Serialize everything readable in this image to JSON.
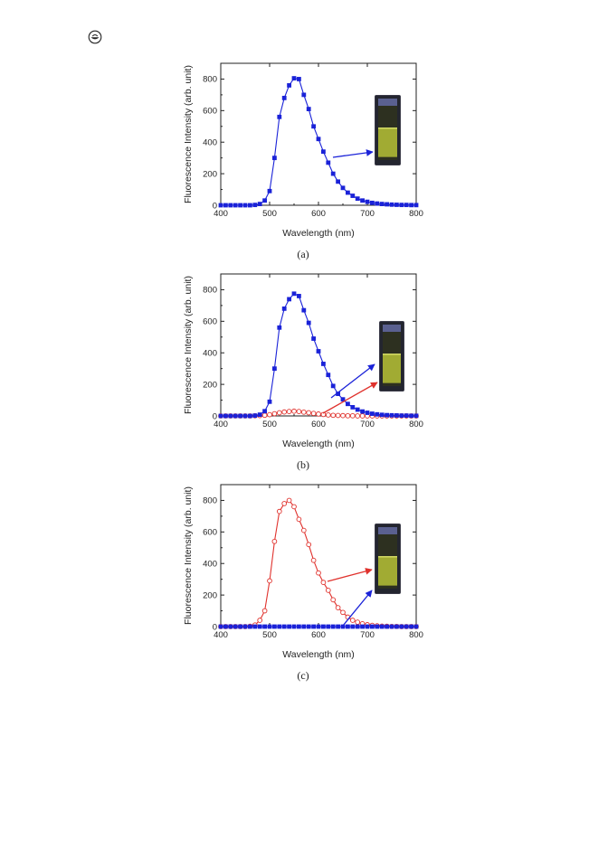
{
  "header": {
    "logo_icon": "journal-logo-icon"
  },
  "colors": {
    "series_blue": "#1a22d8",
    "series_red": "#e0322d",
    "vial_glow": "#c8d43a"
  },
  "chart_data": [
    {
      "type": "line",
      "caption": "(a)",
      "xlabel": "Wavelength (nm)",
      "ylabel": "Fluorescence Intensity (arb. unit)",
      "xlim": [
        400,
        800
      ],
      "ylim": [
        0,
        900
      ],
      "xticks": [
        400,
        500,
        600,
        700,
        800
      ],
      "yticks": [
        0,
        200,
        400,
        600,
        800
      ],
      "grid": false,
      "inset": "vial-photo",
      "series": [
        {
          "color": "#1a22d8",
          "marker": "filled-square",
          "x": [
            400,
            410,
            420,
            430,
            440,
            450,
            460,
            470,
            480,
            490,
            500,
            510,
            520,
            530,
            540,
            550,
            560,
            570,
            580,
            590,
            600,
            610,
            620,
            630,
            640,
            650,
            660,
            670,
            680,
            690,
            700,
            710,
            720,
            730,
            740,
            750,
            760,
            770,
            780,
            790,
            800
          ],
          "y": [
            0,
            0,
            0,
            0,
            0,
            0,
            0,
            2,
            8,
            30,
            90,
            300,
            560,
            680,
            760,
            805,
            800,
            700,
            610,
            500,
            420,
            340,
            270,
            200,
            150,
            110,
            80,
            60,
            42,
            30,
            22,
            15,
            11,
            8,
            6,
            4,
            3,
            2,
            2,
            1,
            1
          ]
        }
      ]
    },
    {
      "type": "line",
      "caption": "(b)",
      "xlabel": "Wavelength (nm)",
      "ylabel": "Fluorescence Intensity (arb. unit)",
      "xlim": [
        400,
        800
      ],
      "ylim": [
        0,
        900
      ],
      "xticks": [
        400,
        500,
        600,
        700,
        800
      ],
      "yticks": [
        0,
        200,
        400,
        600,
        800
      ],
      "grid": false,
      "inset": "vial-photo",
      "series": [
        {
          "color": "#1a22d8",
          "marker": "filled-square",
          "x": [
            400,
            410,
            420,
            430,
            440,
            450,
            460,
            470,
            480,
            490,
            500,
            510,
            520,
            530,
            540,
            550,
            560,
            570,
            580,
            590,
            600,
            610,
            620,
            630,
            640,
            650,
            660,
            670,
            680,
            690,
            700,
            710,
            720,
            730,
            740,
            750,
            760,
            770,
            780,
            790,
            800
          ],
          "y": [
            0,
            0,
            0,
            0,
            0,
            0,
            0,
            2,
            8,
            30,
            90,
            300,
            560,
            680,
            740,
            775,
            760,
            670,
            590,
            490,
            410,
            330,
            260,
            190,
            140,
            105,
            76,
            55,
            40,
            28,
            20,
            14,
            10,
            7,
            5,
            4,
            3,
            2,
            2,
            1,
            1
          ]
        },
        {
          "color": "#e0322d",
          "marker": "open-circle",
          "x": [
            400,
            410,
            420,
            430,
            440,
            450,
            460,
            470,
            480,
            490,
            500,
            510,
            520,
            530,
            540,
            550,
            560,
            570,
            580,
            590,
            600,
            610,
            620,
            630,
            640,
            650,
            660,
            670,
            680,
            690,
            700,
            710,
            720,
            730,
            740,
            750,
            760,
            770,
            780,
            790,
            800
          ],
          "y": [
            0,
            0,
            0,
            0,
            0,
            0,
            0,
            1,
            2,
            4,
            8,
            14,
            20,
            25,
            28,
            30,
            28,
            24,
            20,
            16,
            12,
            9,
            6,
            4,
            3,
            2,
            1,
            1,
            0,
            0,
            0,
            0,
            0,
            0,
            0,
            0,
            0,
            0,
            0,
            0,
            0
          ]
        }
      ]
    },
    {
      "type": "line",
      "caption": "(c)",
      "xlabel": "Wavelength (nm)",
      "ylabel": "Fluorescence Intensity (arb. unit)",
      "xlim": [
        400,
        800
      ],
      "ylim": [
        0,
        900
      ],
      "xticks": [
        400,
        500,
        600,
        700,
        800
      ],
      "yticks": [
        0,
        200,
        400,
        600,
        800
      ],
      "grid": false,
      "inset": "vial-photo",
      "series": [
        {
          "color": "#e0322d",
          "marker": "open-circle",
          "x": [
            400,
            410,
            420,
            430,
            440,
            450,
            460,
            470,
            480,
            490,
            500,
            510,
            520,
            530,
            540,
            550,
            560,
            570,
            580,
            590,
            600,
            610,
            620,
            630,
            640,
            650,
            660,
            670,
            680,
            690,
            700,
            710,
            720,
            730,
            740,
            750,
            760,
            770,
            780,
            790,
            800
          ],
          "y": [
            0,
            0,
            0,
            0,
            0,
            0,
            2,
            10,
            40,
            100,
            290,
            540,
            730,
            780,
            800,
            760,
            680,
            610,
            520,
            420,
            340,
            280,
            230,
            170,
            120,
            90,
            60,
            40,
            28,
            18,
            12,
            8,
            5,
            3,
            2,
            1,
            1,
            0,
            0,
            0,
            0
          ]
        },
        {
          "color": "#1a22d8",
          "marker": "filled-square",
          "x": [
            400,
            410,
            420,
            430,
            440,
            450,
            460,
            470,
            480,
            490,
            500,
            510,
            520,
            530,
            540,
            550,
            560,
            570,
            580,
            590,
            600,
            610,
            620,
            630,
            640,
            650,
            660,
            670,
            680,
            690,
            700,
            710,
            720,
            730,
            740,
            750,
            760,
            770,
            780,
            790,
            800
          ],
          "y": [
            0,
            0,
            0,
            0,
            0,
            0,
            0,
            0,
            0,
            0,
            0,
            0,
            0,
            0,
            0,
            0,
            0,
            0,
            0,
            0,
            0,
            0,
            0,
            0,
            0,
            0,
            0,
            0,
            0,
            0,
            0,
            0,
            0,
            0,
            0,
            0,
            0,
            0,
            0,
            0,
            0
          ]
        }
      ]
    }
  ]
}
